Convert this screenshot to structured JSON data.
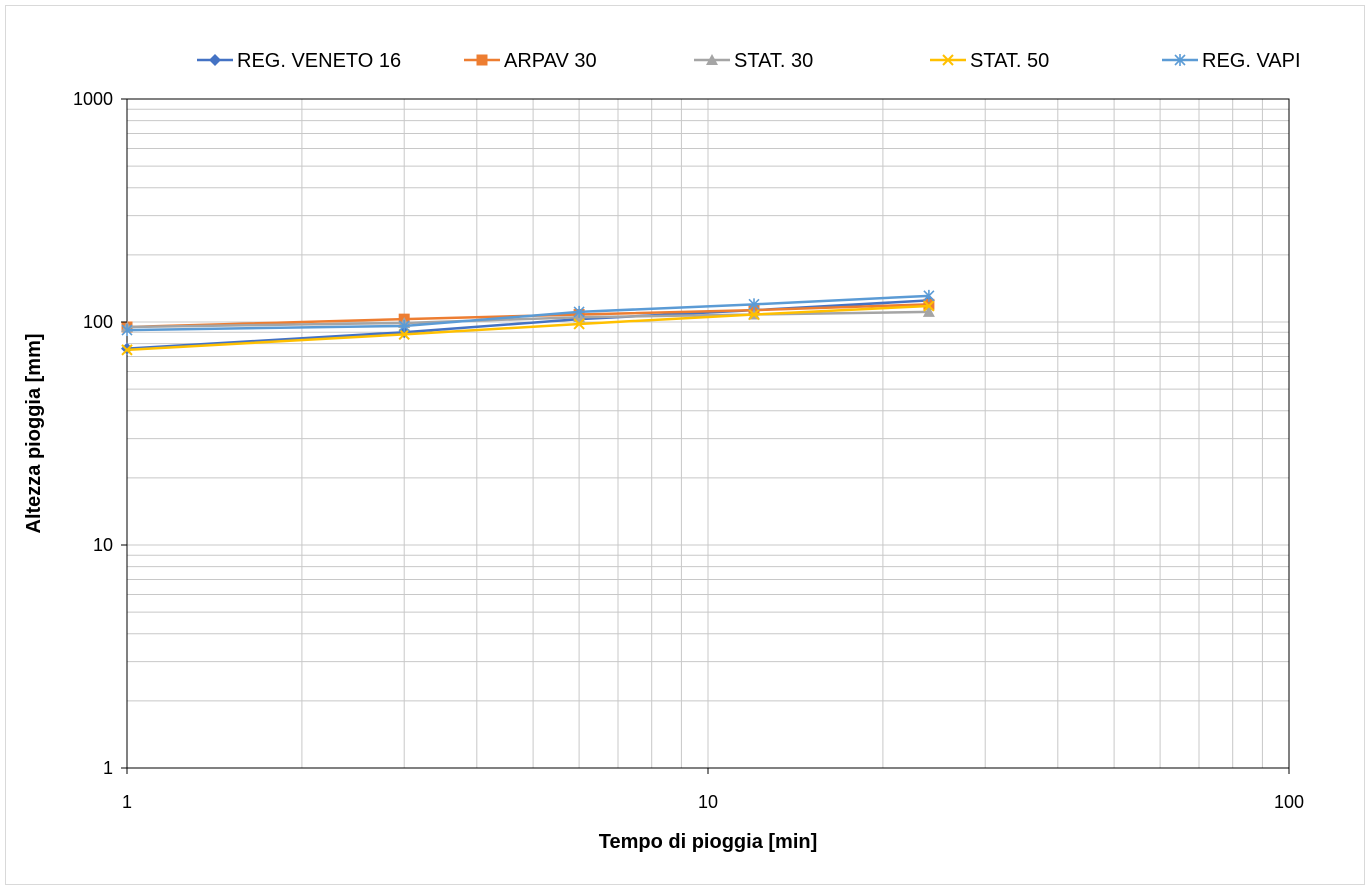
{
  "chart_data": {
    "type": "line",
    "xscale": "log",
    "yscale": "log",
    "xlim": [
      1,
      100
    ],
    "ylim": [
      1,
      1000
    ],
    "xlabel": "Tempo di pioggia [min]",
    "ylabel": "Altezza pioggia [mm]",
    "x_ticks": [
      1,
      10,
      100
    ],
    "y_ticks": [
      1,
      10,
      100,
      1000
    ],
    "x_tick_labels": [
      "1",
      "10",
      "100"
    ],
    "y_tick_labels": [
      "1",
      "10",
      "100",
      "1000"
    ],
    "grid": "major and minor",
    "legend_position": "top",
    "x": [
      1,
      3,
      6,
      12,
      24
    ],
    "series": [
      {
        "name": "REG. VENETO 16",
        "color": "#4472c4",
        "marker": "diamond",
        "values": [
          76,
          90,
          103,
          113,
          125
        ]
      },
      {
        "name": "ARPAV 30",
        "color": "#ed7d31",
        "marker": "square",
        "values": [
          95,
          103,
          108,
          113,
          120
        ]
      },
      {
        "name": "STAT. 30",
        "color": "#a5a5a5",
        "marker": "triangle",
        "values": [
          95,
          99,
          105,
          108,
          111
        ]
      },
      {
        "name": "STAT. 50",
        "color": "#ffc000",
        "marker": "x",
        "values": [
          75,
          88,
          98,
          108,
          118
        ]
      },
      {
        "name": "REG. VAPI",
        "color": "#5b9bd5",
        "marker": "star",
        "values": [
          92,
          96,
          111,
          120,
          131
        ]
      }
    ]
  }
}
